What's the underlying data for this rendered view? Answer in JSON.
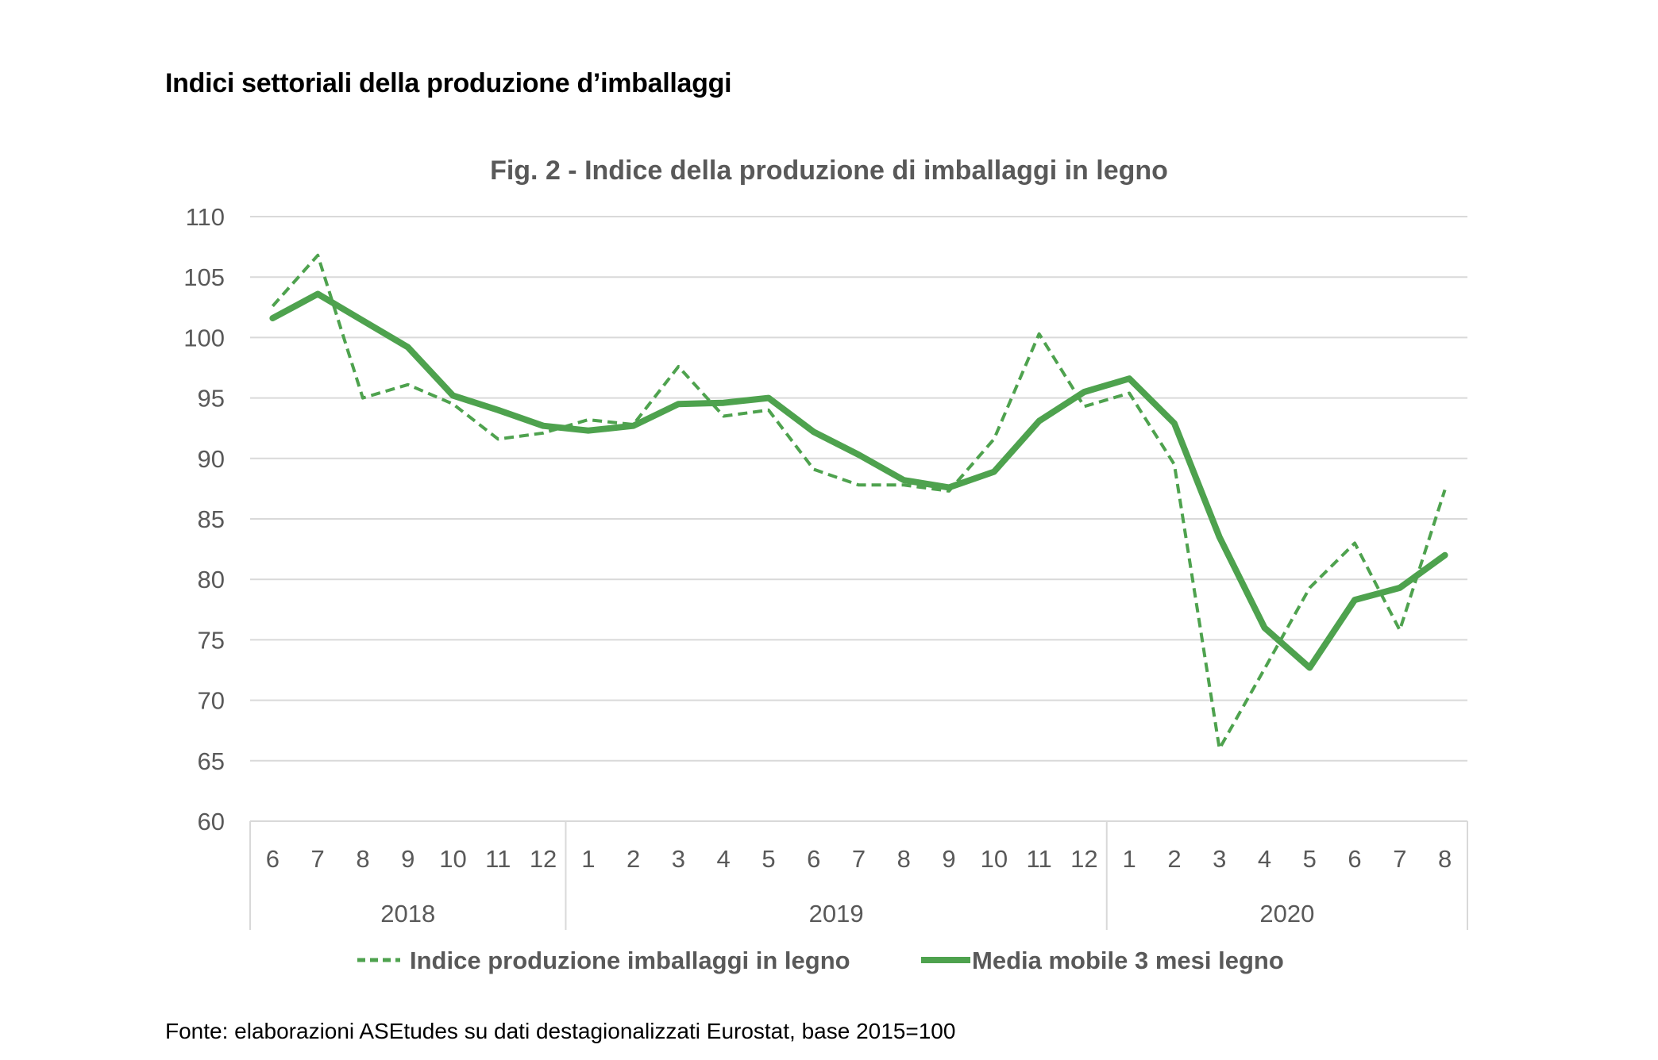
{
  "heading": "Indici settoriali della produzione d’imballaggi",
  "source": "Fonte: elaborazioni ASEtudes su dati destagionalizzati Eurostat, base 2015=100",
  "colors": {
    "series": "#4ea24e",
    "grid": "#d9d9d9",
    "axis_text": "#595959",
    "title_text": "#595959"
  },
  "chart_data": {
    "type": "line",
    "title": "Fig. 2 - Indice della produzione di imballaggi in legno",
    "xlabel": "",
    "ylabel": "",
    "ylim": [
      60,
      110
    ],
    "y_ticks": [
      60,
      65,
      70,
      75,
      80,
      85,
      90,
      95,
      100,
      105,
      110
    ],
    "grid": true,
    "legend_position": "bottom",
    "categories": [
      "6",
      "7",
      "8",
      "9",
      "10",
      "11",
      "12",
      "1",
      "2",
      "3",
      "4",
      "5",
      "6",
      "7",
      "8",
      "9",
      "10",
      "11",
      "12",
      "1",
      "2",
      "3",
      "4",
      "5",
      "6",
      "7",
      "8"
    ],
    "year_groups": [
      {
        "label": "2018",
        "count": 7
      },
      {
        "label": "2019",
        "count": 12
      },
      {
        "label": "2020",
        "count": 8
      }
    ],
    "series": [
      {
        "name": "Indice produzione imballaggi in legno",
        "style": "dashed",
        "values": [
          102.6,
          106.8,
          95.0,
          96.1,
          94.5,
          91.6,
          92.1,
          93.2,
          92.8,
          97.6,
          93.5,
          94.0,
          89.1,
          87.8,
          87.8,
          87.3,
          91.6,
          100.3,
          94.3,
          95.4,
          89.5,
          66.0,
          72.6,
          79.3,
          83.0,
          75.8,
          87.4
        ]
      },
      {
        "name": "Media mobile 3 mesi  legno",
        "style": "solid",
        "values": [
          101.6,
          103.6,
          101.4,
          99.2,
          95.2,
          94.0,
          92.7,
          92.3,
          92.7,
          94.5,
          94.6,
          95.0,
          92.2,
          90.3,
          88.2,
          87.6,
          88.9,
          93.1,
          95.5,
          96.6,
          92.9,
          83.5,
          76.0,
          72.7,
          78.3,
          79.3,
          82.0
        ]
      }
    ]
  }
}
